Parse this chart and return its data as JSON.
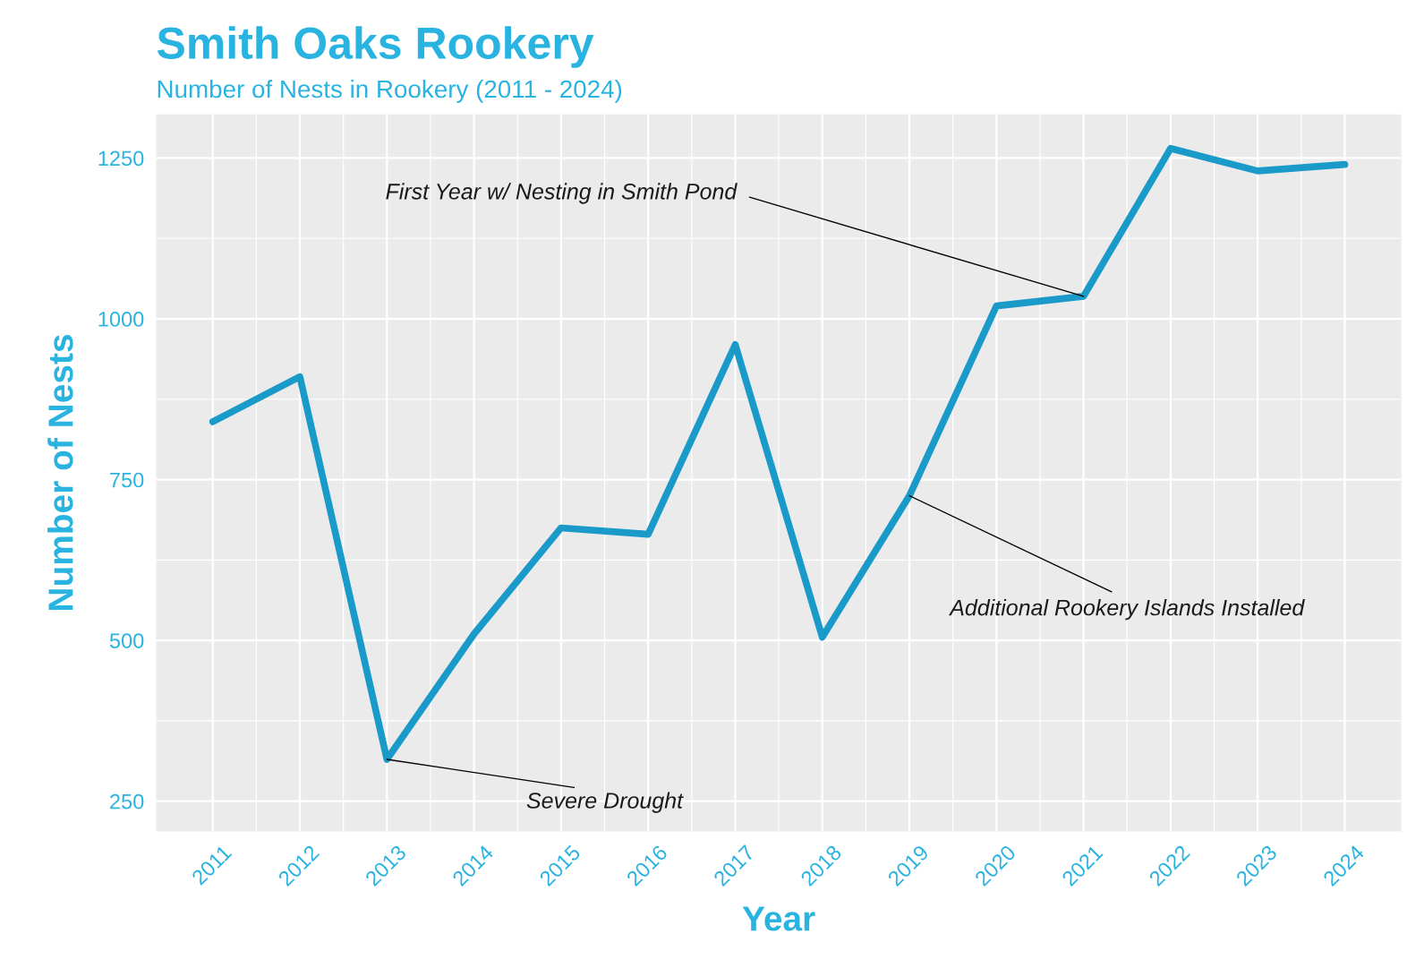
{
  "chart_data": {
    "type": "line",
    "title": "Smith Oaks Rookery",
    "subtitle": "Number of Nests in Rookery (2011 - 2024)",
    "xlabel": "Year",
    "ylabel": "Number of Nests",
    "x": [
      2011,
      2012,
      2013,
      2014,
      2015,
      2016,
      2017,
      2018,
      2019,
      2020,
      2021,
      2022,
      2023,
      2024
    ],
    "series": [
      {
        "color": "#1a9ac9",
        "values": [
          840,
          910,
          315,
          510,
          675,
          665,
          960,
          505,
          725,
          1020,
          1035,
          1265,
          1230,
          1240
        ]
      }
    ],
    "xlim": [
      2010.35,
      2024.65
    ],
    "xticks": [
      2011,
      2012,
      2013,
      2014,
      2015,
      2016,
      2017,
      2018,
      2019,
      2020,
      2021,
      2022,
      2023,
      2024
    ],
    "ylim": [
      203,
      1318
    ],
    "yticks": [
      250,
      500,
      750,
      1000,
      1250
    ],
    "grid": true,
    "marker": "none",
    "line_style": "solid",
    "annotations": [
      {
        "text": "First Year w/ Nesting in Smith Pond",
        "x": 2021,
        "y": 1035
      },
      {
        "text": "Severe Drought",
        "x": 2013,
        "y": 315
      },
      {
        "text": "Additional Rookery Islands Installed",
        "x": 2019,
        "y": 725
      }
    ]
  }
}
